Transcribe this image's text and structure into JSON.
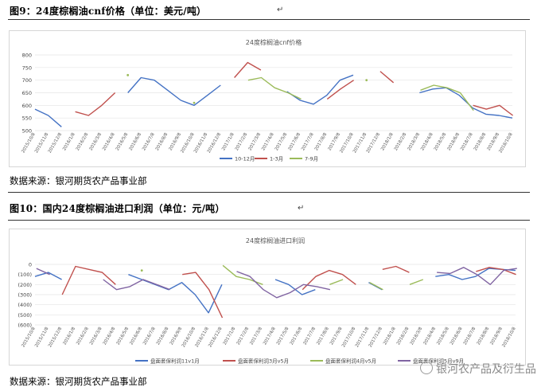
{
  "figure1": {
    "caption": "图9：24度棕榈油cnf价格（单位：美元/吨）",
    "source": "数据来源：银河期货农产品事业部",
    "chart_data": {
      "type": "line",
      "title": "24度棕榈油cnf价格",
      "ylim": [
        500,
        800
      ],
      "yticks": [
        "800",
        "750",
        "700",
        "650",
        "600",
        "550",
        "500"
      ],
      "xticks": [
        "2015/10/8",
        "2015/11/8",
        "2015/12/8",
        "2016/1/8",
        "2016/2/8",
        "2016/3/8",
        "2016/4/8",
        "2016/5/8",
        "2016/6/8",
        "2016/7/8",
        "2016/8/8",
        "2016/9/8",
        "2016/10/8",
        "2016/11/8",
        "2016/12/8",
        "2017/1/8",
        "2017/2/8",
        "2017/3/8",
        "2017/4/8",
        "2017/5/8",
        "2017/6/8",
        "2017/7/8",
        "2017/8/8",
        "2017/9/8",
        "2017/10/8",
        "2017/11/8",
        "2017/12/8",
        "2018/1/8",
        "2018/2/8",
        "2018/3/8",
        "2018/4/8",
        "2018/5/8",
        "2018/6/8",
        "2018/7/8",
        "2018/8/8",
        "2018/9/8",
        "2018/10/8"
      ],
      "series": [
        {
          "name": "10-12月",
          "color": "#4472c4",
          "values": [
            585,
            560,
            515,
            "",
            "",
            "",
            "",
            650,
            710,
            700,
            660,
            620,
            600,
            640,
            680,
            "",
            "",
            "",
            "",
            655,
            620,
            605,
            640,
            700,
            720,
            "",
            "",
            "",
            "",
            650,
            665,
            670,
            640,
            590,
            565,
            560,
            550
          ]
        },
        {
          "name": "1-3月",
          "color": "#c0504d",
          "values": [
            "",
            "",
            "",
            575,
            560,
            600,
            650,
            "",
            "",
            "",
            "",
            "",
            "",
            "",
            "",
            710,
            770,
            740,
            "",
            "",
            "",
            "",
            625,
            665,
            700,
            "",
            735,
            690,
            "",
            "",
            "",
            "",
            "",
            600,
            585,
            600,
            560
          ]
        },
        {
          "name": "7-9月",
          "color": "#9bbb59",
          "values": [
            "",
            "",
            "",
            "",
            "",
            "",
            "",
            720,
            "",
            "",
            "",
            "",
            610,
            "",
            "",
            "",
            700,
            710,
            670,
            650,
            625,
            "",
            "",
            "",
            "",
            700,
            "",
            "",
            "",
            660,
            680,
            670,
            650,
            580,
            "",
            "",
            ""
          ]
        }
      ]
    }
  },
  "figure2": {
    "caption": "图10：国内24度棕榈油进口利润（单位：元/吨）",
    "source": "数据来源：银河期货农产品事业部",
    "chart_data": {
      "type": "line",
      "title": "24度棕榈油进口利润",
      "ylim": [
        -600,
        0
      ],
      "yticks": [
        "0",
        "(100)",
        "(200)",
        "(300)",
        "(400)",
        "(500)",
        "(600)"
      ],
      "xticks": [
        "2015/10/8",
        "2015/11/8",
        "2015/12/8",
        "2016/1/8",
        "2016/2/8",
        "2016/3/8",
        "2016/4/8",
        "2016/5/8",
        "2016/6/8",
        "2016/7/8",
        "2016/8/8",
        "2016/9/8",
        "2016/10/8",
        "2016/11/8",
        "2016/12/8",
        "2017/1/8",
        "2017/2/8",
        "2017/3/8",
        "2017/4/8",
        "2017/5/8",
        "2017/6/8",
        "2017/7/8",
        "2017/8/8",
        "2017/9/8",
        "2017/10/8",
        "2017/11/8",
        "2017/12/8",
        "2018/1/8",
        "2018/2/8",
        "2018/3/8",
        "2018/4/8",
        "2018/5/8",
        "2018/6/8",
        "2018/7/8",
        "2018/8/8",
        "2018/9/8",
        "2018/10/8"
      ],
      "series": [
        {
          "name": "盘面套保利润11v1月",
          "color": "#4472c4",
          "values": [
            -120,
            -80,
            -150,
            "",
            "",
            "",
            "",
            -100,
            -150,
            -200,
            -250,
            -180,
            -300,
            -480,
            -200,
            "",
            "",
            "",
            -150,
            -200,
            -300,
            -250,
            "",
            "",
            "",
            -180,
            -250,
            "",
            "",
            "",
            -120,
            -100,
            -150,
            -120,
            -40,
            -50,
            -60
          ]
        },
        {
          "name": "盘面套保利润3月v5月",
          "color": "#c0504d",
          "values": [
            "",
            "",
            -300,
            -20,
            -50,
            -80,
            -200,
            "",
            "",
            "",
            "",
            -100,
            -80,
            -250,
            -530,
            "",
            "",
            "",
            "",
            "",
            -250,
            -120,
            -60,
            -100,
            -200,
            "",
            -50,
            -20,
            -80,
            "",
            "",
            "",
            "",
            -70,
            -30,
            -50,
            -100
          ]
        },
        {
          "name": "盘面套保利润4月v5月",
          "color": "#9bbb59",
          "values": [
            "",
            "",
            "",
            "",
            "",
            "",
            "",
            "",
            -60,
            "",
            "",
            "",
            "",
            "",
            -10,
            -120,
            -150,
            -200,
            "",
            "",
            "",
            "",
            -200,
            -150,
            "",
            -180,
            -250,
            "",
            -200,
            -150,
            "",
            "",
            "",
            "",
            "",
            "",
            ""
          ]
        },
        {
          "name": "盘面套保利润5月v9月",
          "color": "#8064a2",
          "values": [
            -40,
            -100,
            "",
            "",
            "",
            -150,
            -250,
            -220,
            -150,
            -200,
            -250,
            "",
            "",
            "",
            "",
            -70,
            -120,
            -250,
            -330,
            -280,
            -200,
            -220,
            -250,
            "",
            "",
            "",
            "",
            "",
            "",
            "",
            -80,
            -90,
            -30,
            -100,
            -200,
            -60,
            -40
          ]
        }
      ]
    }
  },
  "watermark": "银河农产品及衍生品"
}
